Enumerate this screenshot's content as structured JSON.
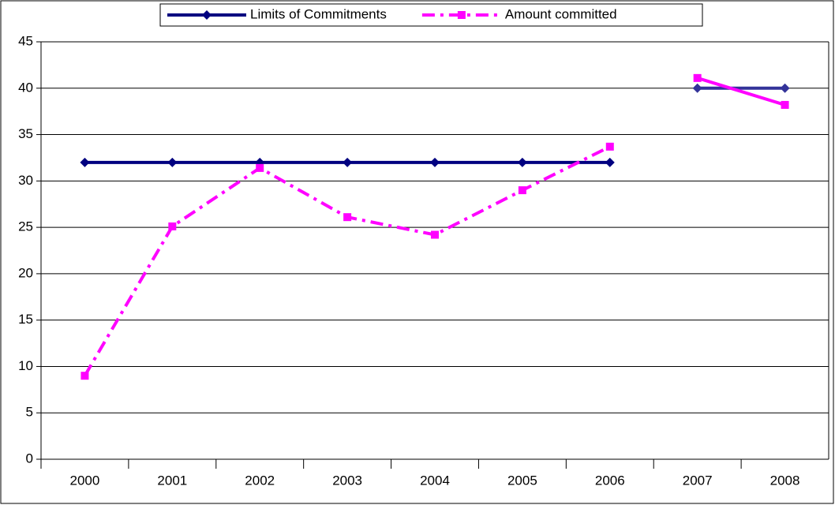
{
  "chart_data": {
    "type": "line",
    "categories": [
      "2000",
      "2001",
      "2002",
      "2003",
      "2004",
      "2005",
      "2006",
      "2007",
      "2008"
    ],
    "series": [
      {
        "name": "Limits of Commitments",
        "color": "#000080",
        "marker": "diamond",
        "dash": "solid",
        "values": [
          32,
          32,
          32,
          32,
          32,
          32,
          32,
          null,
          null
        ]
      },
      {
        "name": "Amount committed",
        "color": "#ff00ff",
        "marker": "square",
        "dash": "dashdot",
        "values": [
          9.0,
          25.1,
          31.4,
          26.1,
          24.2,
          29.0,
          33.7,
          null,
          null
        ]
      },
      {
        "color": "#333399",
        "marker": "diamond",
        "dash": "solid",
        "values": [
          null,
          null,
          null,
          null,
          null,
          null,
          null,
          40,
          40
        ]
      },
      {
        "color": "#ff00ff",
        "marker": "square",
        "dash": "solid",
        "values": [
          null,
          null,
          null,
          null,
          null,
          null,
          null,
          41.1,
          38.2
        ]
      }
    ],
    "ylim": [
      0,
      45
    ],
    "yticks": [
      0,
      5,
      10,
      15,
      20,
      25,
      30,
      35,
      40,
      45
    ],
    "grid": true,
    "legend": "top"
  }
}
